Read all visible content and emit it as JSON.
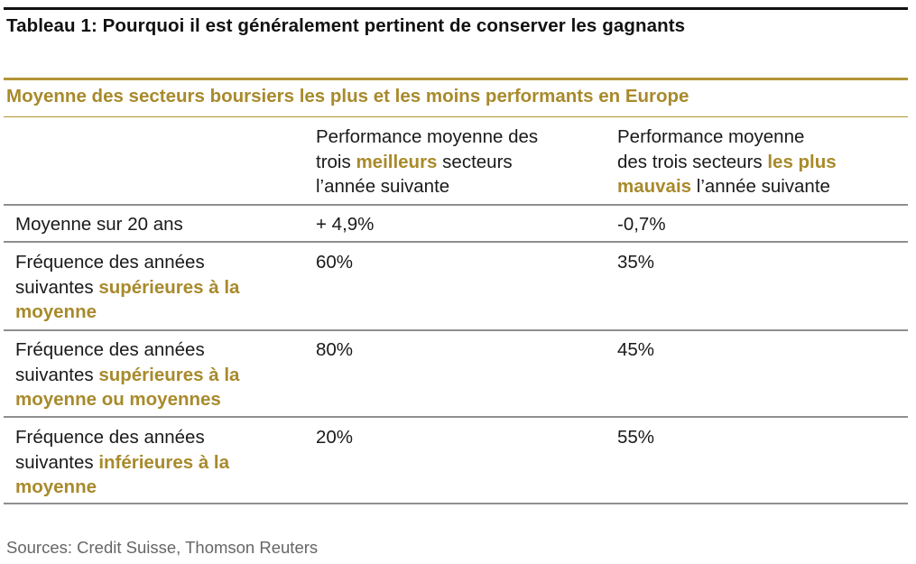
{
  "title": "Tableau 1: Pourquoi il est généralement pertinent de conserver les gagnants",
  "subtitle": "Moyenne des secteurs boursiers les plus et les moins performants en Europe",
  "header": {
    "col2": {
      "line1": "Performance moyenne des",
      "line2_pre": "trois ",
      "line2_hl": "meilleurs",
      "line2_post": " secteurs",
      "line3": "l’année suivante"
    },
    "col3": {
      "line1": "Performance moyenne",
      "line2_pre": "des trois secteurs ",
      "line2_hl": "les plus",
      "line3_hl": "mauvais",
      "line3_post": " l’année suivante"
    }
  },
  "rows": [
    {
      "label_line1": "Moyenne sur 20 ans",
      "best": "+ 4,9%",
      "worst": "-0,7%"
    },
    {
      "label_line1": "Fréquence des années",
      "label_line2_pre": "suivantes ",
      "label_line2_hl": "supérieures à la",
      "label_line3_hl": "moyenne",
      "best": "60%",
      "worst": "35%"
    },
    {
      "label_line1": "Fréquence des années",
      "label_line2_pre": "suivantes ",
      "label_line2_hl": "supérieures à la",
      "label_line3_hl": "moyenne ou moyennes",
      "best": "80%",
      "worst": "45%"
    },
    {
      "label_line1": "Fréquence des années",
      "label_line2_pre": "suivantes ",
      "label_line2_hl": "inférieures à la",
      "label_line3_hl": "moyenne",
      "best": "20%",
      "worst": "55%"
    }
  ],
  "source": "Sources: Credit Suisse, Thomson Reuters",
  "colors": {
    "accent_gold": "#a88a2c",
    "rule_gold": "#b39535",
    "rule_black": "#111111",
    "rule_gray": "#8f8f8f",
    "source_gray": "#666666"
  }
}
